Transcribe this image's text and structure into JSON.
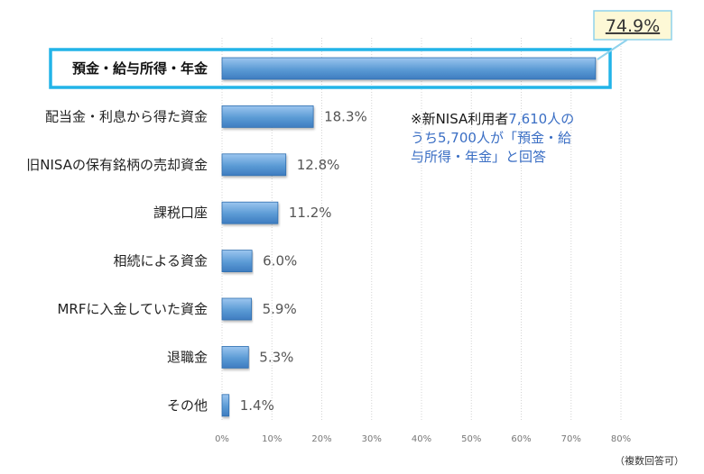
{
  "chart_data": {
    "type": "bar",
    "orientation": "horizontal",
    "categories": [
      "預金・給与所得・年金",
      "配当金・利息から得た資金",
      "旧NISAの保有銘柄の売却資金",
      "課税口座",
      "相続による資金",
      "MRFに入金していた資金",
      "退職金",
      "その他"
    ],
    "values": [
      74.9,
      18.3,
      12.8,
      11.2,
      6.0,
      5.9,
      5.3,
      1.4
    ],
    "value_labels": [
      "74.9%",
      "18.3%",
      "12.8%",
      "11.2%",
      "6.0%",
      "5.9%",
      "5.3%",
      "1.4%"
    ],
    "highlight_index": 0,
    "xlim": [
      0,
      80
    ],
    "xticks": [
      0,
      10,
      20,
      30,
      40,
      50,
      60,
      70,
      80
    ],
    "xtick_labels": [
      "0%",
      "10%",
      "20%",
      "30%",
      "40%",
      "50%",
      "60%",
      "70%",
      "80%"
    ],
    "grid": true,
    "colors": {
      "bar": "#5b9bd5",
      "bar_dark": "#2f6eaf",
      "highlight_border": "#22b4e8",
      "callout_box_fill": "#fdf8d6",
      "callout_box_border": "#8fd2ec",
      "annotation_dark": "#1a1a1a",
      "annotation_blue": "#3a6ec4"
    },
    "annotation": {
      "lines": [
        [
          {
            "text": "※新NISA利用者",
            "color": "dark"
          },
          {
            "text": "7,610人の",
            "color": "blue"
          }
        ],
        [
          {
            "text": "うち5,700人が「預金・給",
            "color": "blue"
          }
        ],
        [
          {
            "text": "与所得・年金」と回答",
            "color": "blue"
          }
        ]
      ]
    }
  },
  "footnote": "（複数回答可）"
}
